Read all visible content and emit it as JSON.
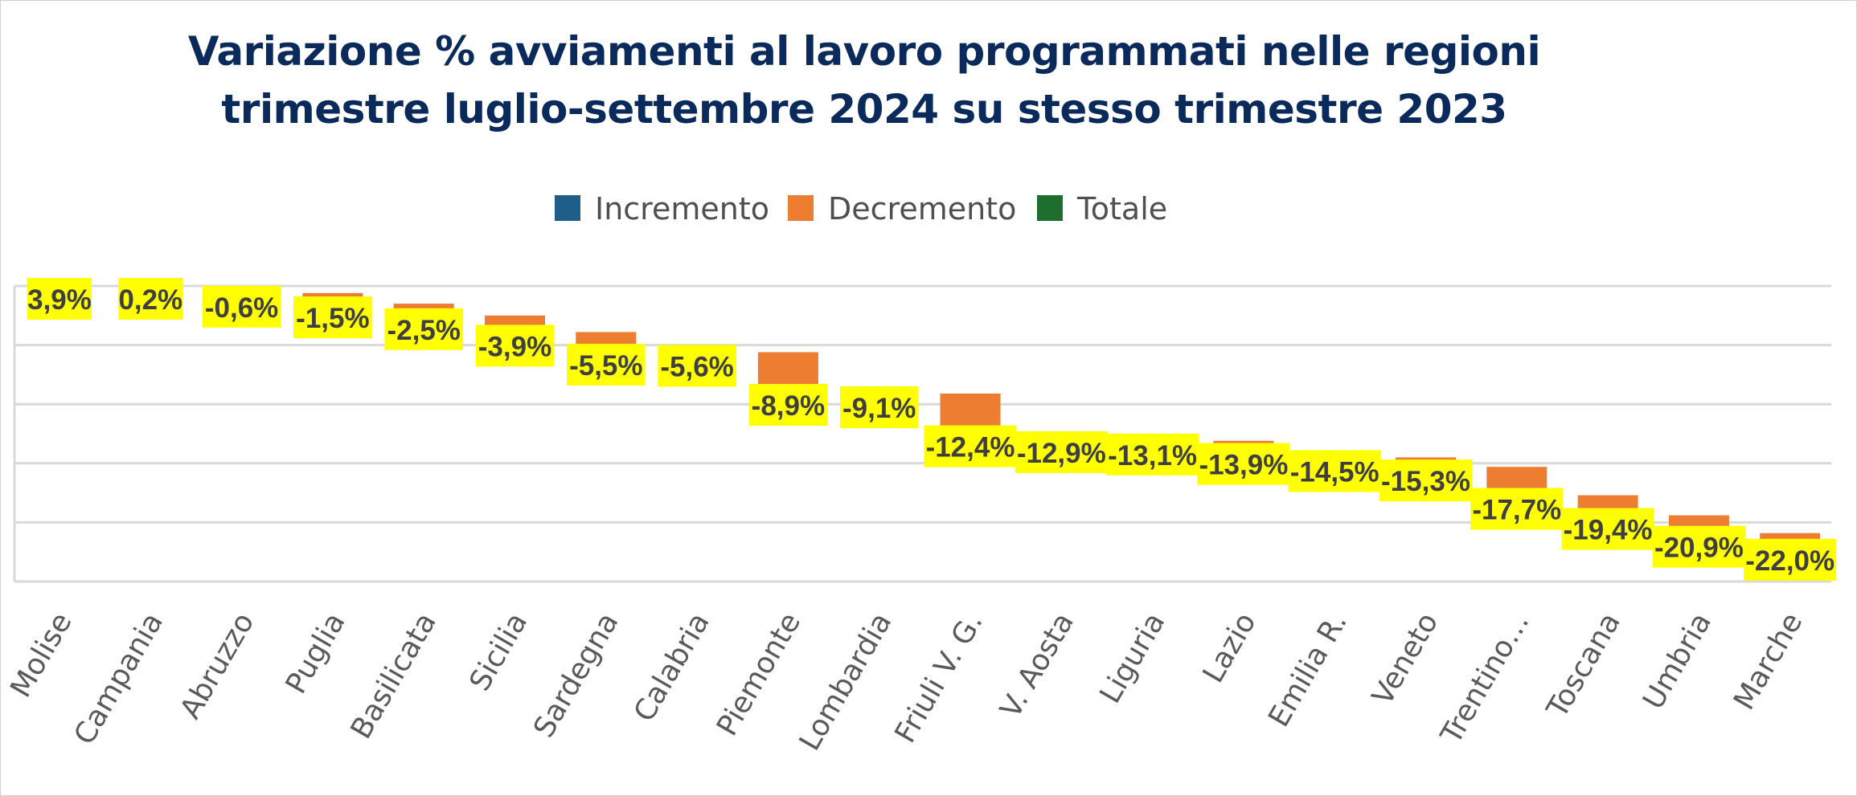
{
  "chart_data": {
    "type": "waterfall",
    "title": [
      "Variazione % avviamenti al lavoro programmati nelle regioni",
      "trimestre luglio-settembre 2024 su stesso trimestre 2023"
    ],
    "legend": [
      {
        "name": "Incremento",
        "color": "#1f5e88"
      },
      {
        "name": "Decremento",
        "color": "#ed7d31"
      },
      {
        "name": "Totale",
        "color": "#1e6e2e"
      }
    ],
    "legend_position": "top",
    "categories": [
      "Molise",
      "Campania",
      "Abruzzo",
      "Puglia",
      "Basilicata",
      "Sicilia",
      "Sardegna",
      "Calabria",
      "Piemonte",
      "Lombardia",
      "Friuli V. G.",
      "V. Aosta",
      "Liguria",
      "Lazio",
      "Emilia R.",
      "Veneto",
      "Trentino…",
      "Toscana",
      "Umbria",
      "Marche"
    ],
    "values": [
      3.9,
      0.2,
      -0.6,
      -1.5,
      -2.5,
      -3.9,
      -5.5,
      -5.6,
      -8.9,
      -9.1,
      -12.4,
      -12.9,
      -13.1,
      -13.9,
      -14.5,
      -15.3,
      -17.7,
      -19.4,
      -20.9,
      -22.0
    ],
    "data_labels": [
      "3,9%",
      "0,2%",
      "-0,6%",
      "-1,5%",
      "-2,5%",
      "-3,9%",
      "-5,5%",
      "-5,6%",
      "-8,9%",
      "-9,1%",
      "-12,4%",
      "-12,9%",
      "-13,1%",
      "-13,9%",
      "-14,5%",
      "-15,3%",
      "-17,7%",
      "-19,4%",
      "-20,9%",
      "-22,0%"
    ],
    "ylim": [
      -25,
      0
    ],
    "grid": true,
    "label_highlight": "#ffff00"
  }
}
